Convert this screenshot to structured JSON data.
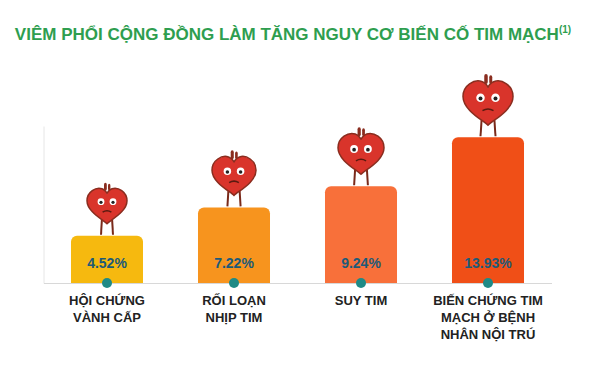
{
  "chart_data": {
    "type": "bar",
    "title": "VIÊM PHỔI CỘNG ĐỒNG LÀM TĂNG NGUY CƠ BIẾN CỐ TIM MẠCH",
    "annotations": [
      "(1)"
    ],
    "categories": [
      "HỘI CHỨNG\nVÀNH CẤP",
      "RỐI LOẠN\nNHỊP TIM",
      "SUY TIM",
      "BIẾN CHỨNG TIM\nMẠCH Ở BỆNH\nNHÂN NỘI TRÚ"
    ],
    "values": [
      4.52,
      7.22,
      9.24,
      13.93
    ],
    "value_labels": [
      "4.52%",
      "7.22%",
      "9.24%",
      "13.93%"
    ],
    "colors": [
      "#f6b90f",
      "#f7941e",
      "#f8703a",
      "#f04f17"
    ],
    "ylim": [
      0,
      15
    ],
    "data_labels": true,
    "tick_labels": "x",
    "grid": false
  }
}
